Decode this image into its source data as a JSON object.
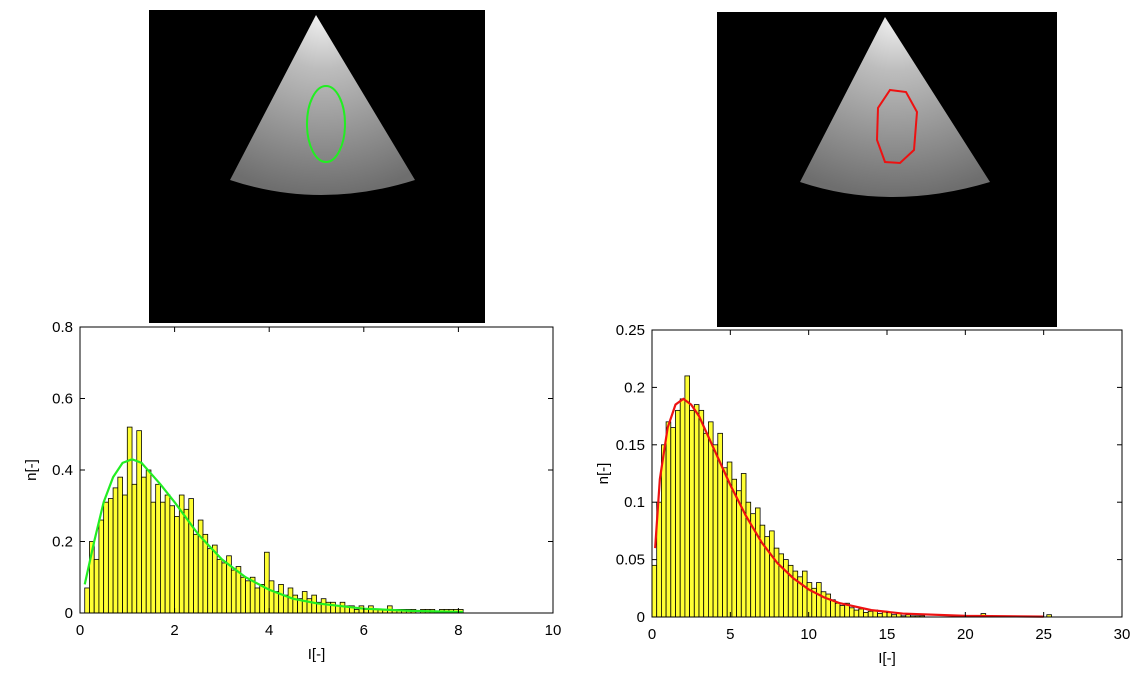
{
  "chart_data": [
    {
      "type": "histogram",
      "xlabel": "I[-]",
      "ylabel": "n[-]",
      "color": "#ffff33",
      "bins": [
        0.1,
        0.2,
        0.3,
        0.4,
        0.5,
        0.6,
        0.7,
        0.8,
        0.9,
        1.0,
        1.1,
        1.2,
        1.3,
        1.4,
        1.5,
        1.6,
        1.7,
        1.8,
        1.9,
        2.0,
        2.1,
        2.2,
        2.3,
        2.4,
        2.5,
        2.6,
        2.7,
        2.8,
        2.9,
        3.0,
        3.1,
        3.2,
        3.3,
        3.4,
        3.5,
        3.6,
        3.7,
        3.8,
        3.9,
        4.0,
        4.1,
        4.2,
        4.3,
        4.4,
        4.5,
        4.6,
        4.7,
        4.8,
        4.9,
        5.0,
        5.1,
        5.2,
        5.3,
        5.4,
        5.5,
        5.6,
        5.7,
        5.8,
        5.9,
        6.0,
        6.1,
        6.2,
        6.3,
        6.4,
        6.5,
        6.6,
        6.7,
        6.8,
        6.9,
        7.0,
        7.1,
        7.2,
        7.3,
        7.4,
        7.5,
        7.6,
        7.7,
        7.8,
        7.9,
        8.0,
        8.1
      ],
      "values": [
        0.07,
        0.2,
        0.15,
        0.26,
        0.31,
        0.32,
        0.35,
        0.38,
        0.33,
        0.52,
        0.36,
        0.51,
        0.38,
        0.4,
        0.31,
        0.36,
        0.31,
        0.33,
        0.3,
        0.27,
        0.33,
        0.29,
        0.32,
        0.22,
        0.26,
        0.22,
        0.18,
        0.19,
        0.15,
        0.14,
        0.16,
        0.12,
        0.13,
        0.1,
        0.09,
        0.1,
        0.07,
        0.08,
        0.17,
        0.09,
        0.06,
        0.08,
        0.05,
        0.07,
        0.05,
        0.04,
        0.06,
        0.04,
        0.05,
        0.03,
        0.04,
        0.03,
        0.03,
        0.02,
        0.03,
        0.02,
        0.02,
        0.01,
        0.02,
        0.01,
        0.02,
        0.01,
        0.01,
        0.01,
        0.02,
        0.01,
        0.01,
        0.01,
        0.01,
        0.01,
        0,
        0.01,
        0.01,
        0.01,
        0,
        0.01,
        0.01,
        0.01,
        0.01,
        0.01
      ],
      "fit": {
        "color": "#22ee22",
        "x": [
          0.1,
          0.3,
          0.5,
          0.7,
          0.9,
          1.1,
          1.3,
          1.5,
          1.7,
          2.0,
          2.5,
          3.0,
          3.5,
          4.0,
          4.5,
          5.0,
          6.0,
          7.0,
          8.1
        ],
        "values": [
          0.08,
          0.2,
          0.31,
          0.38,
          0.42,
          0.43,
          0.42,
          0.39,
          0.36,
          0.31,
          0.22,
          0.15,
          0.1,
          0.065,
          0.04,
          0.027,
          0.012,
          0.006,
          0.003
        ]
      },
      "xlim": [
        0,
        10
      ],
      "ylim": [
        0,
        0.8
      ],
      "xticks": [
        0,
        2,
        4,
        6,
        8,
        10
      ],
      "yticks": [
        0,
        0.2,
        0.4,
        0.6,
        0.8
      ]
    },
    {
      "type": "histogram",
      "xlabel": "I[-]",
      "ylabel": "n[-]",
      "color": "#ffff33",
      "bins": [
        0,
        0.3,
        0.6,
        0.9,
        1.2,
        1.5,
        1.8,
        2.1,
        2.4,
        2.7,
        3.0,
        3.3,
        3.6,
        3.9,
        4.2,
        4.5,
        4.8,
        5.1,
        5.4,
        5.7,
        6.0,
        6.3,
        6.6,
        6.9,
        7.2,
        7.5,
        7.8,
        8.1,
        8.4,
        8.7,
        9.0,
        9.3,
        9.6,
        9.9,
        10.2,
        10.5,
        10.8,
        11.1,
        11.4,
        11.7,
        12.0,
        12.3,
        12.6,
        12.9,
        13.2,
        13.5,
        13.8,
        14.1,
        14.4,
        14.7,
        15.0,
        15.3,
        15.6,
        15.9,
        16.2,
        16.5,
        16.8,
        17.1,
        17.4,
        17.7,
        18.0,
        18.3,
        18.6,
        18.9,
        19.2,
        19.5,
        19.8,
        20.1,
        20.4,
        20.7,
        21.0,
        21.3,
        21.6,
        21.9,
        22.2,
        22.5,
        22.8,
        23.1,
        23.4,
        23.7,
        24.0,
        24.3,
        24.6,
        24.9,
        25.2,
        25.5
      ],
      "values": [
        0.045,
        0.1,
        0.15,
        0.17,
        0.165,
        0.18,
        0.19,
        0.21,
        0.18,
        0.185,
        0.18,
        0.16,
        0.17,
        0.15,
        0.16,
        0.13,
        0.135,
        0.12,
        0.11,
        0.125,
        0.1,
        0.09,
        0.095,
        0.08,
        0.07,
        0.075,
        0.06,
        0.055,
        0.05,
        0.045,
        0.04,
        0.035,
        0.04,
        0.03,
        0.025,
        0.03,
        0.022,
        0.02,
        0.015,
        0.012,
        0.01,
        0.012,
        0.008,
        0.006,
        0.007,
        0.004,
        0.005,
        0.006,
        0.003,
        0.005,
        0.004,
        0.002,
        0.003,
        0.001,
        0.002,
        0.001,
        0.001,
        0.001,
        0,
        0,
        0,
        0,
        0,
        0,
        0,
        0,
        0,
        0,
        0,
        0,
        0.003,
        0,
        0,
        0,
        0,
        0,
        0,
        0,
        0,
        0,
        0,
        0,
        0,
        0,
        0.002
      ],
      "fit": {
        "color": "#ee1111",
        "x": [
          0.2,
          0.5,
          1,
          1.5,
          2,
          2.5,
          3,
          4,
          5,
          6,
          7,
          8,
          9,
          10,
          11,
          12,
          14,
          16,
          20,
          25
        ],
        "values": [
          0.06,
          0.12,
          0.165,
          0.185,
          0.19,
          0.185,
          0.175,
          0.145,
          0.115,
          0.088,
          0.065,
          0.047,
          0.034,
          0.024,
          0.017,
          0.012,
          0.006,
          0.003,
          0.001,
          0.0003
        ]
      },
      "xlim": [
        0,
        30
      ],
      "ylim": [
        0,
        0.25
      ],
      "xticks": [
        0,
        5,
        10,
        15,
        20,
        25,
        30
      ],
      "yticks": [
        0,
        0.05,
        0.1,
        0.15,
        0.2,
        0.25
      ]
    }
  ]
}
